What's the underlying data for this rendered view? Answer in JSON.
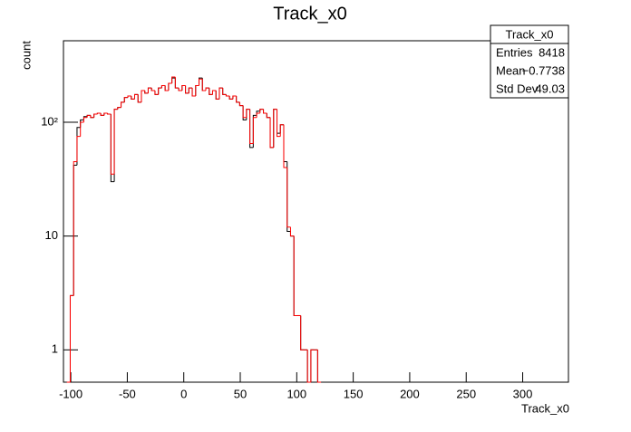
{
  "chart_data": {
    "type": "histogram",
    "title": "Track_x0",
    "x_label": "Track_x0",
    "y_label": "count",
    "log_y": true,
    "xlim": [
      -106.5,
      340.5
    ],
    "ylim": [
      0.52,
      520
    ],
    "xticks": [
      -100,
      -50,
      0,
      50,
      100,
      150,
      200,
      250,
      300
    ],
    "yticks": [
      1,
      10,
      {
        "value": 100,
        "label": "10²"
      }
    ],
    "bins": [
      -103.5,
      -100.5,
      -97.5,
      -94.5,
      -91.5,
      -88.5,
      -85.5,
      -82.5,
      -79.5,
      -76.5,
      -73.5,
      -70.5,
      -67.5,
      -64.5,
      -61.5,
      -58.5,
      -55.5,
      -52.5,
      -49.5,
      -46.5,
      -43.5,
      -40.5,
      -37.5,
      -34.5,
      -31.5,
      -28.5,
      -25.5,
      -22.5,
      -19.5,
      -16.5,
      -13.5,
      -10.5,
      -7.5,
      -4.5,
      -1.5,
      1.5,
      4.5,
      7.5,
      10.5,
      13.5,
      16.5,
      19.5,
      22.5,
      25.5,
      28.5,
      31.5,
      34.5,
      37.5,
      40.5,
      43.5,
      46.5,
      49.5,
      52.5,
      55.5,
      58.5,
      61.5,
      64.5,
      67.5,
      70.5,
      73.5,
      76.5,
      79.5,
      82.5,
      85.5,
      88.5,
      91.5,
      94.5,
      97.5,
      100.5,
      103.5,
      106.5,
      109.5,
      112.5,
      115.5,
      118.5,
      121.5
    ],
    "series": [
      {
        "color": "#000000",
        "values": [
          0,
          3,
          42,
          90,
          105,
          112,
          115,
          110,
          118,
          120,
          115,
          120,
          118,
          30,
          130,
          135,
          150,
          165,
          170,
          160,
          175,
          150,
          190,
          180,
          200,
          190,
          175,
          200,
          210,
          190,
          220,
          245,
          200,
          190,
          210,
          180,
          200,
          170,
          210,
          245,
          190,
          200,
          175,
          190,
          160,
          200,
          175,
          170,
          160,
          170,
          150,
          140,
          105,
          130,
          60,
          115,
          125,
          130,
          120,
          110,
          60,
          130,
          80,
          95,
          45,
          11,
          10,
          2,
          2,
          1,
          1,
          0,
          1,
          1,
          0
        ]
      },
      {
        "color": "#ff0000",
        "values": [
          0,
          3,
          45,
          75,
          100,
          110,
          115,
          110,
          118,
          120,
          115,
          120,
          118,
          35,
          130,
          135,
          150,
          165,
          170,
          160,
          175,
          150,
          190,
          180,
          200,
          190,
          175,
          200,
          210,
          190,
          220,
          250,
          200,
          190,
          210,
          180,
          200,
          170,
          210,
          240,
          190,
          200,
          175,
          190,
          160,
          200,
          175,
          170,
          160,
          170,
          150,
          140,
          110,
          130,
          65,
          110,
          120,
          130,
          120,
          110,
          60,
          130,
          75,
          95,
          40,
          12,
          10,
          2,
          2,
          1,
          1,
          0,
          1,
          1,
          0
        ]
      }
    ],
    "stats": {
      "title": "Track_x0",
      "rows": [
        [
          "Entries",
          "8418"
        ],
        [
          "Mean",
          "−0.7738"
        ],
        [
          "Std Dev",
          "49.03"
        ]
      ]
    }
  }
}
